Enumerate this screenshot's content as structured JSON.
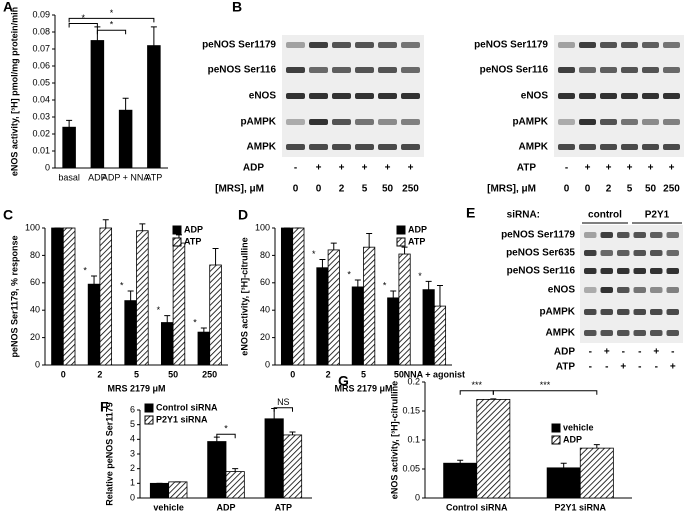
{
  "chart_data": [
    {
      "type": "bar",
      "panel": "A",
      "ylabel": "eNOS activity, [³H] pmol/mg protein/min",
      "categories": [
        "basal",
        "ADP",
        "ADP + NNA",
        "ATP"
      ],
      "series": [
        {
          "name": null,
          "color": "#000000",
          "values": [
            0.024,
            0.075,
            0.034,
            0.072
          ],
          "errors": [
            0.004,
            0.008,
            0.007,
            0.011
          ]
        }
      ],
      "ylim": [
        0,
        0.09
      ],
      "yticks": [
        0,
        0.01,
        0.02,
        0.03,
        0.04,
        0.05,
        0.06,
        0.07,
        0.08,
        0.09
      ],
      "annotations": [
        "*",
        "*",
        "*"
      ]
    },
    {
      "type": "bar",
      "panel": "C",
      "ylabel": "peNOS Ser1179, % response",
      "xlabel": "MRS 2179 μM",
      "categories": [
        "0",
        "2",
        "5",
        "50",
        "250"
      ],
      "series": [
        {
          "name": "ADP",
          "color": "#000000",
          "values": [
            100,
            59,
            47,
            31,
            24
          ],
          "errors": [
            0,
            6,
            7,
            5,
            3
          ]
        },
        {
          "name": "ATP",
          "color": "#000000",
          "hatch": true,
          "values": [
            100,
            100,
            98,
            89,
            73
          ],
          "errors": [
            0,
            6,
            5,
            6,
            12
          ]
        }
      ],
      "ylim": [
        0,
        100
      ],
      "yticks": [
        0,
        20,
        40,
        60,
        80,
        100
      ],
      "legend": "top-right",
      "annotations": [
        "*",
        "*",
        "*",
        "*"
      ]
    },
    {
      "type": "bar",
      "panel": "D",
      "ylabel": "eNOS activity, [³H]-citrulline",
      "xlabel": "MRS 2179 μM",
      "categories": [
        "0",
        "2",
        "5",
        "50",
        "NNA + agonist"
      ],
      "series": [
        {
          "name": "ADP",
          "color": "#000000",
          "values": [
            100,
            71,
            57,
            49,
            55
          ],
          "errors": [
            0,
            6,
            5,
            5,
            6
          ]
        },
        {
          "name": "ATP",
          "color": "#000000",
          "hatch": true,
          "values": [
            100,
            84,
            86,
            81,
            43
          ],
          "errors": [
            0,
            5,
            10,
            5,
            15
          ]
        }
      ],
      "ylim": [
        0,
        100
      ],
      "yticks": [
        0,
        20,
        40,
        60,
        80,
        100
      ],
      "legend": "top-right",
      "annotations": [
        "*",
        "*",
        "*",
        "*"
      ]
    },
    {
      "type": "bar",
      "panel": "F",
      "ylabel": "Relative peNOS Ser1179",
      "categories": [
        "vehicle",
        "ADP",
        "ATP"
      ],
      "series": [
        {
          "name": "Control siRNA",
          "color": "#000000",
          "values": [
            1,
            3.85,
            5.4
          ],
          "errors": [
            0,
            0.3,
            0.7
          ]
        },
        {
          "name": "P2Y1 siRNA",
          "color": "#000000",
          "hatch": true,
          "values": [
            1.1,
            1.8,
            4.3
          ],
          "errors": [
            0,
            0.2,
            0.2
          ]
        }
      ],
      "ylim": [
        0,
        6
      ],
      "yticks": [
        0,
        1,
        2,
        3,
        4,
        5,
        6
      ],
      "legend": "top-left",
      "annotations": [
        "*",
        "NS"
      ]
    },
    {
      "type": "bar",
      "panel": "G",
      "ylabel": "eNOS activity, [³H]-citrulline",
      "categories": [
        "Control siRNA",
        "P2Y1 siRNA"
      ],
      "series": [
        {
          "name": "vehicle",
          "color": "#000000",
          "values": [
            0.06,
            0.052
          ],
          "errors": [
            0.005,
            0.008
          ]
        },
        {
          "name": "ADP",
          "color": "#000000",
          "hatch": true,
          "values": [
            0.17,
            0.086
          ],
          "errors": [
            0.001,
            0.006
          ]
        }
      ],
      "ylim": [
        0,
        0.2
      ],
      "yticks": [
        0,
        0.05,
        0.1,
        0.15,
        0.2
      ],
      "legend": "right",
      "annotations": [
        "***",
        "***"
      ]
    }
  ],
  "blot_panels": [
    {
      "panel": "B",
      "blots": [
        {
          "rows": [
            "peNOS Ser1179",
            "peNOS Ser116",
            "eNOS",
            "pAMPK",
            "AMPK"
          ],
          "conditions": [
            {
              "label": "ADP",
              "marks": [
                "-",
                "+",
                "+",
                "+",
                "+",
                "+"
              ]
            },
            {
              "label": "[MRS], μM",
              "marks": [
                "0",
                "0",
                "2",
                "5",
                "50",
                "250"
              ]
            }
          ]
        },
        {
          "rows": [
            "peNOS Ser1179",
            "peNOS Ser116",
            "eNOS",
            "pAMPK",
            "AMPK"
          ],
          "conditions": [
            {
              "label": "ATP",
              "marks": [
                "-",
                "+",
                "+",
                "+",
                "+",
                "+"
              ]
            },
            {
              "label": "[MRS], μM",
              "marks": [
                "0",
                "0",
                "2",
                "5",
                "50",
                "250"
              ]
            }
          ]
        }
      ]
    },
    {
      "panel": "E",
      "header": {
        "label": "siRNA:",
        "groups": [
          "control",
          "P2Y1"
        ]
      },
      "blots": [
        {
          "rows": [
            "peNOS Ser1179",
            "peNOS Ser635",
            "peNOS Ser116",
            "eNOS",
            "pAMPK",
            "AMPK"
          ],
          "conditions": [
            {
              "label": "ADP",
              "marks": [
                "-",
                "+",
                "-",
                "-",
                "+",
                "-"
              ]
            },
            {
              "label": "ATP",
              "marks": [
                "-",
                "-",
                "+",
                "-",
                "-",
                "+"
              ]
            }
          ]
        }
      ]
    }
  ]
}
